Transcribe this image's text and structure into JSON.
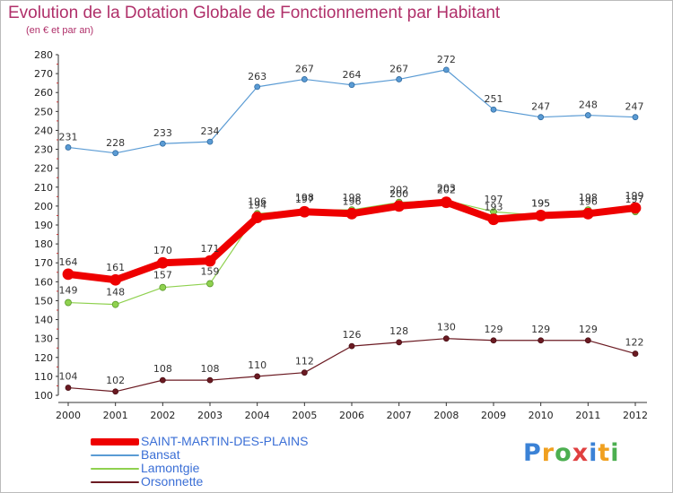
{
  "title": "Evolution de la Dotation Globale de Fonctionnement par Habitant",
  "subtitle": "(en € et par an)",
  "logo_text": "Proxiti",
  "chart_data": {
    "type": "line",
    "title": "Evolution de la Dotation Globale de Fonctionnement par Habitant",
    "subtitle": "(en € et par an)",
    "xlabel": "",
    "ylabel": "",
    "x": [
      "2000",
      "2001",
      "2002",
      "2003",
      "2004",
      "2005",
      "2006",
      "2007",
      "2008",
      "2009",
      "2010",
      "2011",
      "2012"
    ],
    "ylim": [
      100,
      280
    ],
    "yticks": [
      100,
      110,
      120,
      130,
      140,
      150,
      160,
      170,
      180,
      190,
      200,
      210,
      220,
      230,
      240,
      250,
      260,
      270,
      280
    ],
    "grid": false,
    "legend_position": "bottom-left",
    "series": [
      {
        "name": "Bansat",
        "color": "#5a9bd4",
        "values": [
          231,
          228,
          233,
          234,
          263,
          267,
          264,
          267,
          272,
          251,
          247,
          248,
          247
        ]
      },
      {
        "name": "Orsonnette",
        "color": "#6b1a22",
        "values": [
          104,
          102,
          108,
          108,
          110,
          112,
          126,
          128,
          130,
          129,
          129,
          129,
          122
        ]
      },
      {
        "name": "Lamontgie",
        "color": "#8fd14f",
        "values": [
          149,
          148,
          157,
          159,
          196,
          198,
          198,
          202,
          203,
          197,
          195,
          198,
          197
        ]
      },
      {
        "name": "SAINT-MARTIN-DES-PLAINS",
        "color": "#ee0000",
        "values": [
          164,
          161,
          170,
          171,
          194,
          197,
          196,
          200,
          202,
          193,
          195,
          196,
          199
        ]
      }
    ]
  },
  "legend": [
    {
      "name": "SAINT-MARTIN-DES-PLAINS",
      "color": "#ee0000"
    },
    {
      "name": "Bansat",
      "color": "#5a9bd4"
    },
    {
      "name": "Lamontgie",
      "color": "#8fd14f"
    },
    {
      "name": "Orsonnette",
      "color": "#6b1a22"
    }
  ]
}
